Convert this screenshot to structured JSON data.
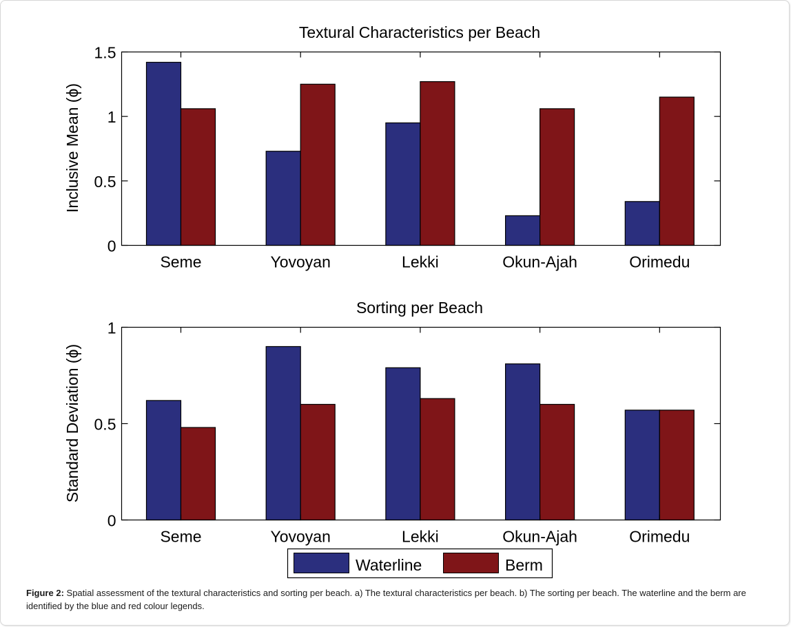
{
  "chart_data": [
    {
      "type": "bar",
      "title": "Textural Characteristics per Beach",
      "xlabel": "",
      "ylabel": "Inclusive Mean (ϕ)",
      "categories": [
        "Seme",
        "Yovoyan",
        "Lekki",
        "Okun-Ajah",
        "Orimedu"
      ],
      "ylim": [
        0,
        1.5
      ],
      "yticks": [
        0,
        0.5,
        1,
        1.5
      ],
      "ytick_labels": [
        "0",
        "0.5",
        "1",
        "1.5"
      ],
      "grid": false,
      "series": [
        {
          "name": "Waterline",
          "color": "#2b2f7e",
          "values": [
            1.42,
            0.73,
            0.95,
            0.23,
            0.34
          ]
        },
        {
          "name": "Berm",
          "color": "#7f1518",
          "values": [
            1.06,
            1.25,
            1.27,
            1.06,
            1.15
          ]
        }
      ]
    },
    {
      "type": "bar",
      "title": "Sorting per Beach",
      "xlabel": "",
      "ylabel": "Standard Deviation (ϕ)",
      "categories": [
        "Seme",
        "Yovoyan",
        "Lekki",
        "Okun-Ajah",
        "Orimedu"
      ],
      "ylim": [
        0,
        1
      ],
      "yticks": [
        0,
        0.5,
        1
      ],
      "ytick_labels": [
        "0",
        "0.5",
        "1"
      ],
      "grid": false,
      "series": [
        {
          "name": "Waterline",
          "color": "#2b2f7e",
          "values": [
            0.62,
            0.9,
            0.79,
            0.81,
            0.57
          ]
        },
        {
          "name": "Berm",
          "color": "#7f1518",
          "values": [
            0.48,
            0.6,
            0.63,
            0.6,
            0.57
          ]
        }
      ]
    }
  ],
  "legend": {
    "placement": "bottom-center",
    "entries": [
      {
        "label": "Waterline",
        "color": "#2b2f7e"
      },
      {
        "label": "Berm",
        "color": "#7f1518"
      }
    ]
  },
  "caption": {
    "label": "Figure 2:",
    "text": " Spatial assessment of the textural characteristics and sorting per beach. a) The textural characteristics per beach. b) The sorting per beach. The waterline and the berm are identified by the blue and red colour legends."
  }
}
